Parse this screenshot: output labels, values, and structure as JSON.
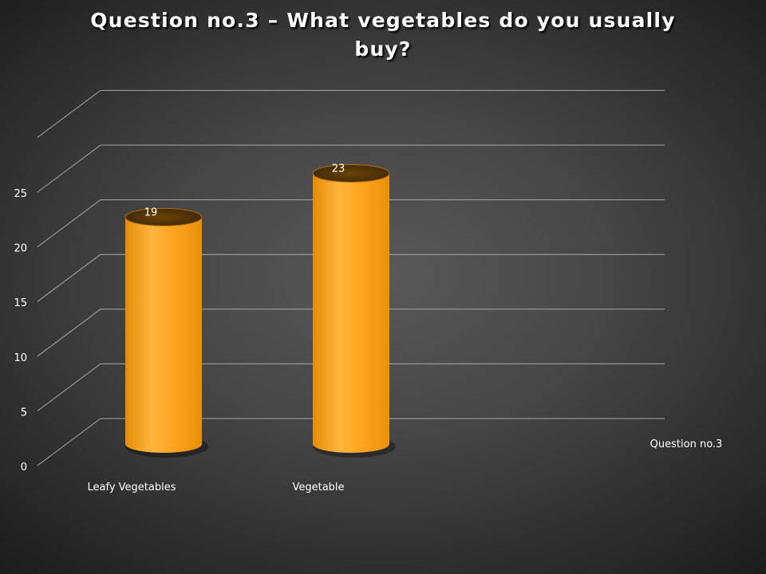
{
  "chart_data": {
    "type": "bar",
    "title": "Question no.3 – What vegetables do you usually buy?",
    "categories": [
      "Leafy Vegetables",
      "Vegetable"
    ],
    "series": [
      {
        "name": "Question no.3",
        "values": [
          19,
          23
        ]
      }
    ],
    "data_labels": [
      "19",
      "23"
    ],
    "y_ticks": [
      "0",
      "5",
      "10",
      "15",
      "20",
      "25"
    ],
    "ylim": [
      0,
      25
    ],
    "xlabel": "",
    "ylabel": "",
    "grid": true,
    "legend_position": "right",
    "bar_shape": "cylinder-3d",
    "colors": {
      "bar_main": "#ffa51f",
      "bar_dark": "#d27c00",
      "bar_top": "#5a3a06",
      "grid": "#a8a8a8",
      "text": "#ffffff"
    }
  }
}
